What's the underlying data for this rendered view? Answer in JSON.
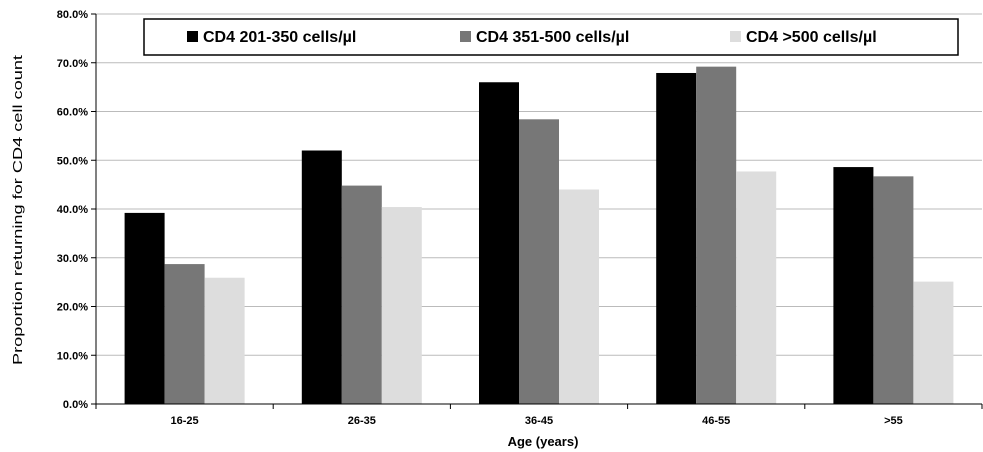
{
  "chart_data": {
    "type": "bar",
    "title": "",
    "xlabel": "Age (years)",
    "ylabel": "Proportion returning for CD4 cell count",
    "categories": [
      "16-25",
      "26-35",
      "36-45",
      "46-55",
      ">55"
    ],
    "series": [
      {
        "name": "CD4 201-350 cells/µl",
        "color": "#000000",
        "values": [
          39.2,
          52.0,
          66.0,
          67.9,
          48.6
        ]
      },
      {
        "name": "CD4 351-500 cells/µl",
        "color": "#777777",
        "values": [
          28.7,
          44.8,
          58.4,
          69.2,
          46.7
        ]
      },
      {
        "name": "CD4 >500 cells/µl",
        "color": "#dddddd",
        "values": [
          25.9,
          40.4,
          44.0,
          47.7,
          25.1
        ]
      }
    ],
    "ylim": [
      0,
      80
    ],
    "yticks": [
      "0.0%",
      "10.0%",
      "20.0%",
      "30.0%",
      "40.0%",
      "50.0%",
      "60.0%",
      "70.0%",
      "80.0%"
    ],
    "grid": true,
    "legend": "top-center"
  }
}
